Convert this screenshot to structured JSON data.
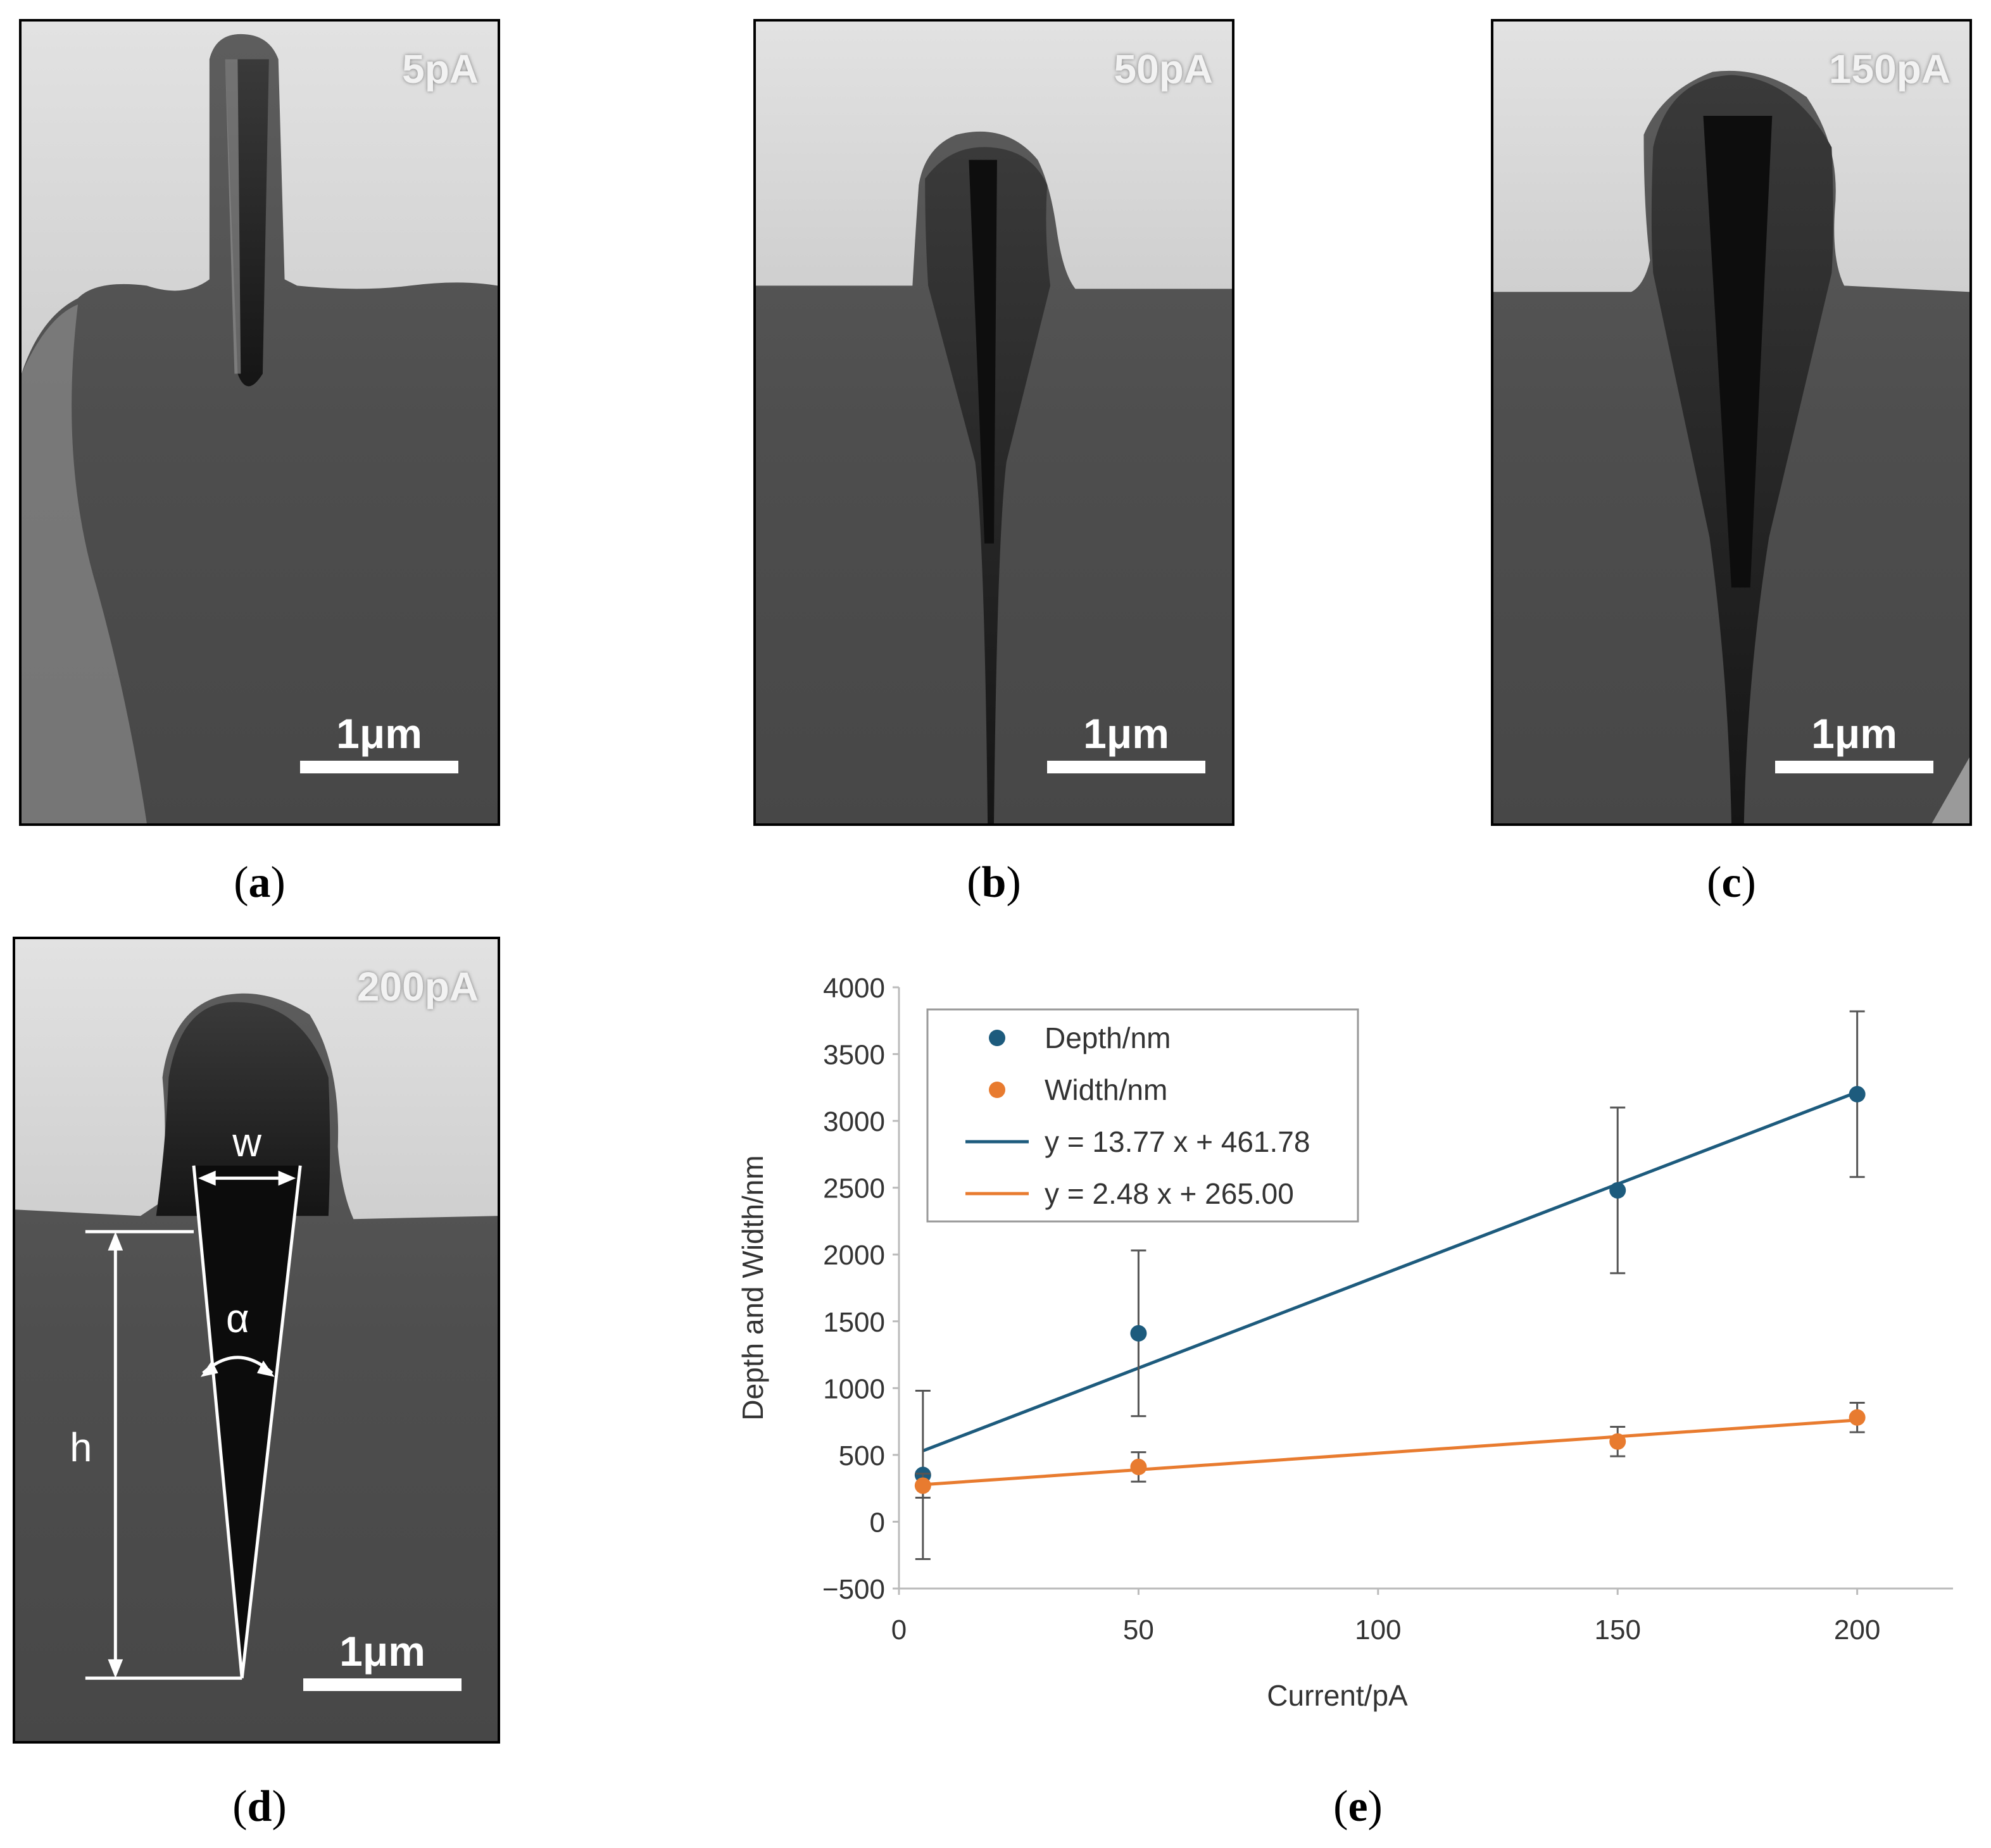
{
  "panels": [
    {
      "id": "a",
      "current": "5pA",
      "scale": "1μm",
      "caption": "a"
    },
    {
      "id": "b",
      "current": "50pA",
      "scale": "1μm",
      "caption": "b"
    },
    {
      "id": "c",
      "current": "150pA",
      "scale": "1μm",
      "caption": "c"
    },
    {
      "id": "d",
      "current": "200pA",
      "scale": "1μm",
      "caption": "d",
      "annotations": {
        "width": "w",
        "angle": "α",
        "height": "h"
      }
    }
  ],
  "chart_caption": "e",
  "colors": {
    "depth": "#1d5b7d",
    "width": "#e87b2f",
    "axis": "#333333",
    "frame": "#bbbbbb"
  },
  "chart_data": {
    "type": "scatter",
    "xlabel": "Current/pA",
    "ylabel": "Depth and Width/nm",
    "xlim": [
      0,
      220
    ],
    "ylim": [
      -500,
      4000
    ],
    "xticks": [
      0,
      50,
      100,
      150,
      200
    ],
    "yticks": [
      4000,
      3500,
      3000,
      2500,
      2000,
      1500,
      1000,
      500,
      0,
      -500
    ],
    "grid": false,
    "legend_position": "top-left",
    "series": [
      {
        "name": "Depth/nm",
        "color": "#1d5b7d",
        "x": [
          5,
          50,
          150,
          200
        ],
        "y": [
          350,
          1410,
          2480,
          3200
        ],
        "error": [
          630,
          620,
          620,
          620
        ]
      },
      {
        "name": "Width/nm",
        "color": "#e87b2f",
        "x": [
          5,
          50,
          150,
          200
        ],
        "y": [
          270,
          410,
          600,
          780
        ],
        "error": [
          90,
          110,
          110,
          110
        ]
      }
    ],
    "fits": [
      {
        "name": "y = 13.77 x + 461.78",
        "slope": 13.77,
        "intercept": 461.78,
        "color": "#1d5b7d"
      },
      {
        "name": "y = 2.48 x + 265.00",
        "slope": 2.48,
        "intercept": 265.0,
        "color": "#e87b2f"
      }
    ]
  }
}
